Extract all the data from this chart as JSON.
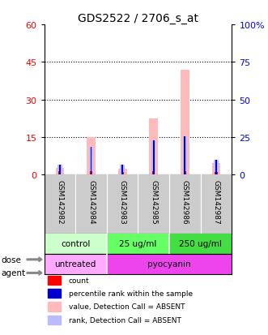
{
  "title": "GDS2522 / 2706_s_at",
  "samples": [
    "GSM142982",
    "GSM142984",
    "GSM142983",
    "GSM142985",
    "GSM142986",
    "GSM142987"
  ],
  "value_absent": [
    2.5,
    14.8,
    2.3,
    22.5,
    42.0,
    4.5
  ],
  "rank_absent": [
    3.8,
    11.0,
    3.8,
    13.5,
    15.2,
    5.8
  ],
  "count_red": [
    1.2,
    1.2,
    0.9,
    1.2,
    1.2,
    0.9
  ],
  "percentile_blue": [
    3.8,
    11.0,
    3.8,
    13.5,
    15.2,
    5.8
  ],
  "ylim_left": [
    0,
    60
  ],
  "ylim_right": [
    0,
    100
  ],
  "yticks_left": [
    0,
    15,
    30,
    45,
    60
  ],
  "yticks_right": [
    0,
    25,
    50,
    75,
    100
  ],
  "dose_labels": [
    [
      "control",
      0,
      2
    ],
    [
      "25 ug/ml",
      2,
      4
    ],
    [
      "250 ug/ml",
      4,
      6
    ]
  ],
  "agent_labels": [
    [
      "untreated",
      0,
      2
    ],
    [
      "pyocyanin",
      2,
      6
    ]
  ],
  "dose_colors": [
    "#ccffcc",
    "#66ff66",
    "#44dd44"
  ],
  "agent_colors": [
    "#ffaaff",
    "#ee44ee"
  ],
  "bar_bg_color": "#cccccc",
  "color_value_absent": "#ffbbbb",
  "color_rank_absent": "#bbbbff",
  "color_count": "#ff0000",
  "color_percentile": "#0000cc",
  "background_color": "#ffffff",
  "label_fontsize": 8,
  "tick_fontsize": 8,
  "title_fontsize": 10,
  "legend_items": [
    [
      "#ff0000",
      "count"
    ],
    [
      "#0000cc",
      "percentile rank within the sample"
    ],
    [
      "#ffbbbb",
      "value, Detection Call = ABSENT"
    ],
    [
      "#bbbbff",
      "rank, Detection Call = ABSENT"
    ]
  ]
}
